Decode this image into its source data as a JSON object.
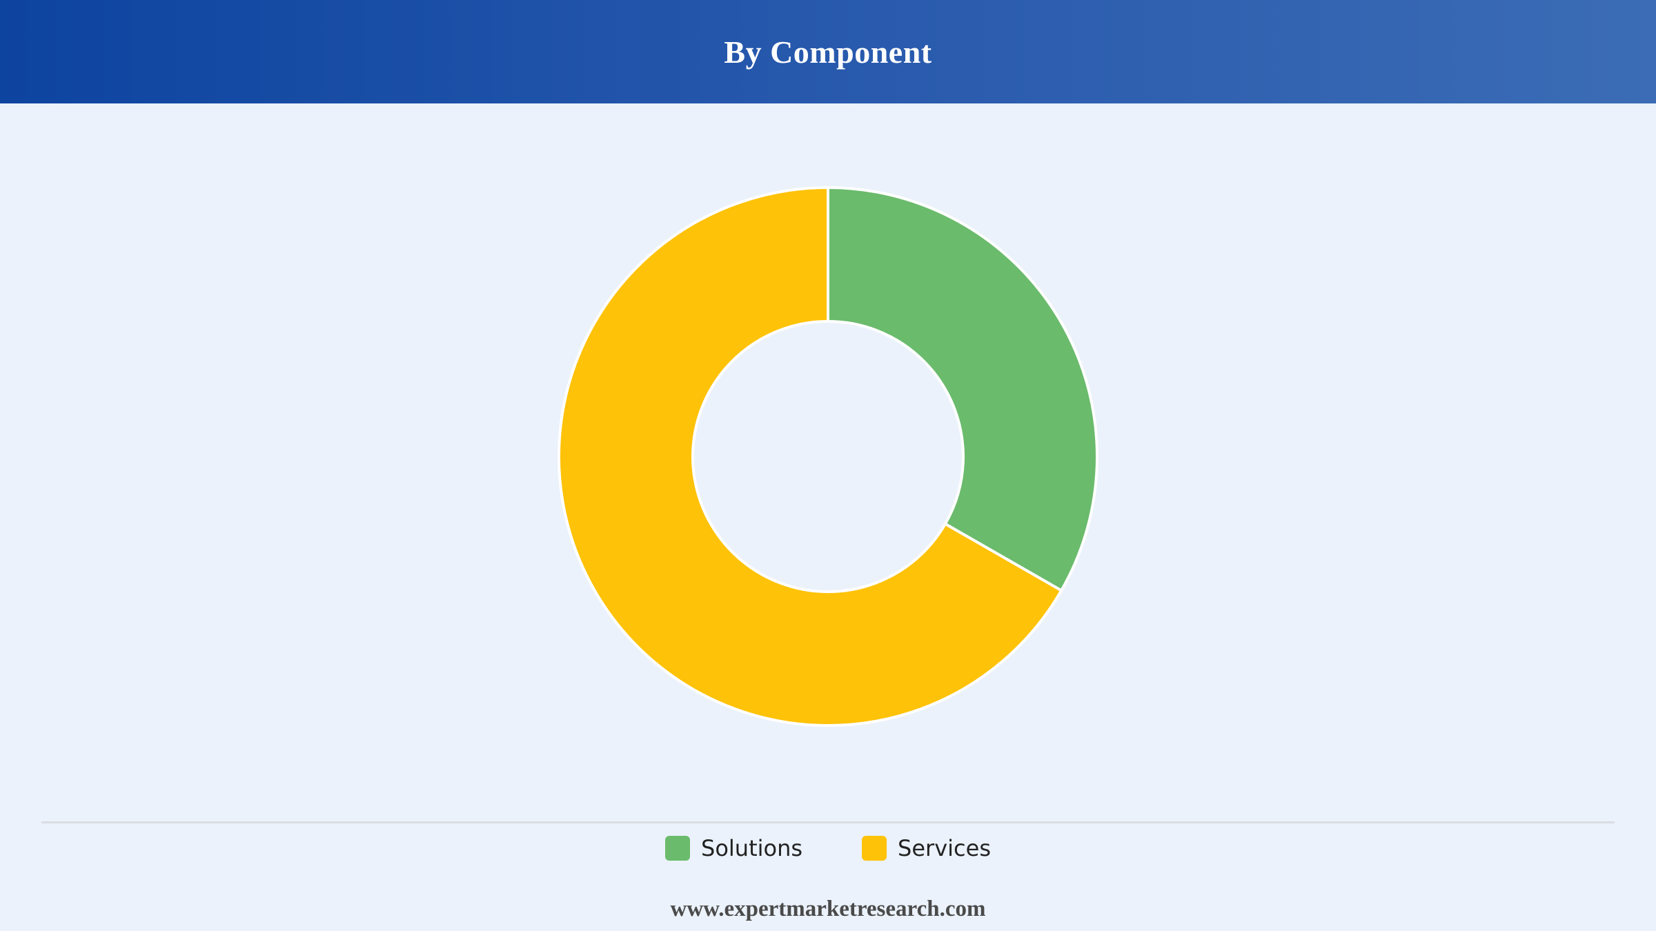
{
  "header": {
    "title": "By Component",
    "gradient_start": "#0D44A0",
    "gradient_end": "#3B6CB5"
  },
  "chart_data": {
    "type": "pie",
    "subtype": "donut",
    "title": "By Component",
    "categories": [
      "Solutions",
      "Services"
    ],
    "values": [
      33.3,
      66.7
    ],
    "colors": [
      "#6ABB6C",
      "#FEC208"
    ],
    "legend_position": "bottom-center"
  },
  "legend": {
    "items": [
      {
        "label": "Solutions",
        "color": "#6ABB6C"
      },
      {
        "label": "Services",
        "color": "#FEC208"
      }
    ]
  },
  "footer": {
    "website": "www.expertmarketresearch.com"
  },
  "colors": {
    "background": "#EBF2FB",
    "slice_border": "#FFFFFF"
  }
}
